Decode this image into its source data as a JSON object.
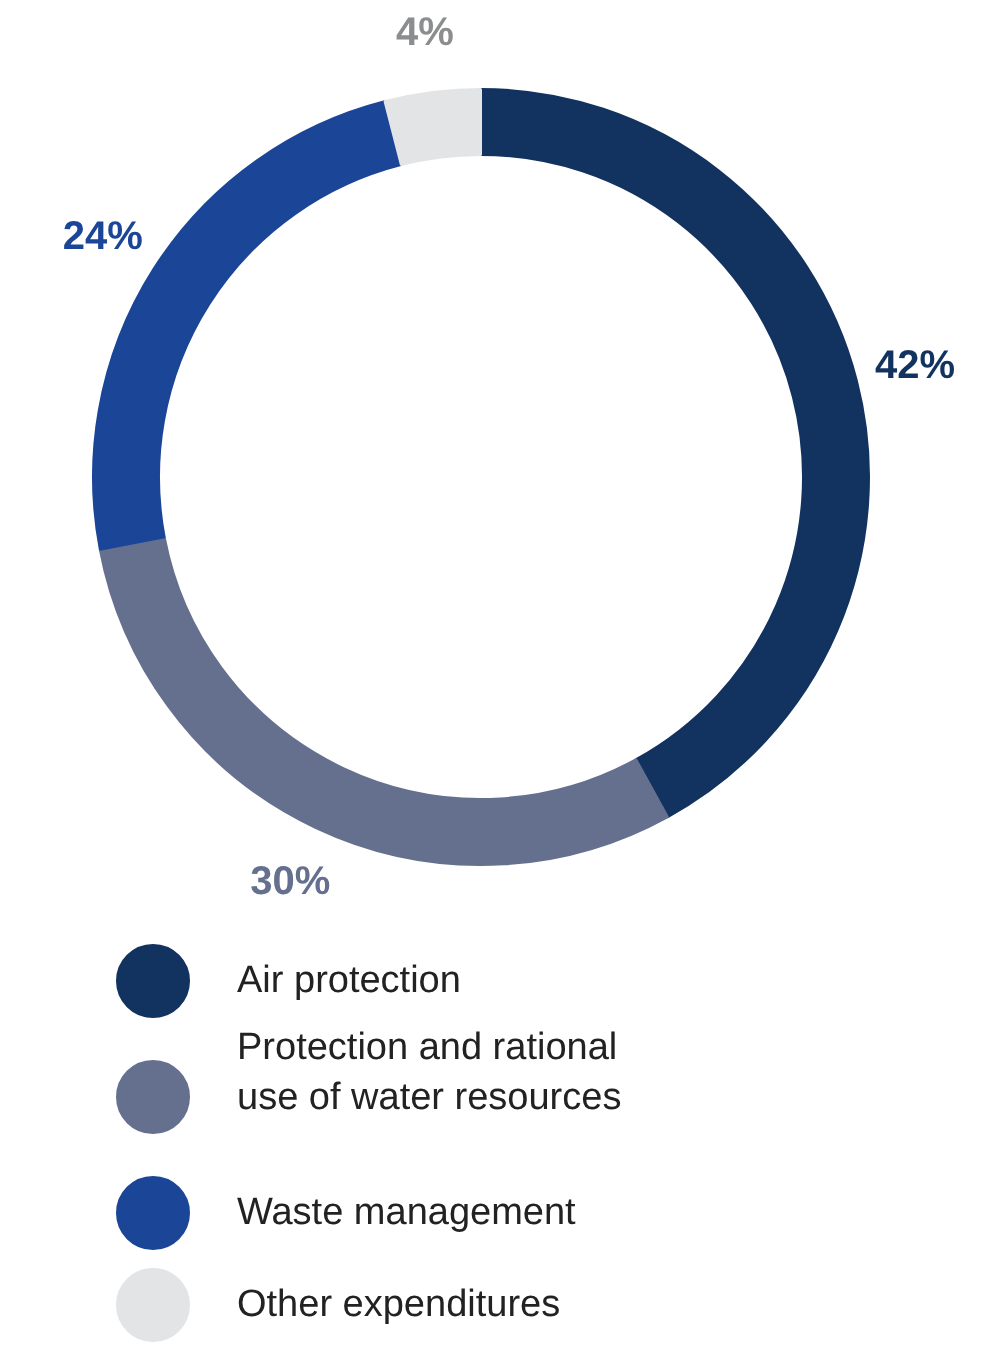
{
  "chart_data": {
    "type": "donut",
    "categories": [
      "Air protection",
      "Protection and rational use of water resources",
      "Waste management",
      "Other expenditures"
    ],
    "values": [
      42,
      30,
      24,
      4
    ],
    "colors": [
      "#12325f",
      "#65708f",
      "#1b4597",
      "#e3e4e6"
    ],
    "value_labels": [
      "42%",
      "30%",
      "24%",
      "4%"
    ],
    "legend": "bottom"
  }
}
